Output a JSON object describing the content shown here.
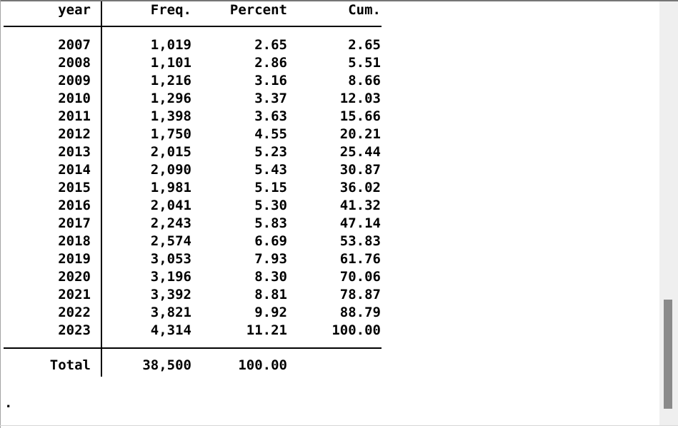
{
  "colors": {
    "text": "#000000",
    "background": "#ffffff",
    "border_top": "#757575",
    "border_left": "#a3a3a3",
    "border_bottom": "#d6d6d6",
    "scrollbar_track": "#efefef",
    "scrollbar_thumb": "#8a8a8a"
  },
  "prompt": ".",
  "table": {
    "header": {
      "year": "year",
      "freq": "Freq.",
      "percent": "Percent",
      "cum": "Cum."
    },
    "rows": [
      [
        "2007",
        "1,019",
        "2.65",
        "2.65"
      ],
      [
        "2008",
        "1,101",
        "2.86",
        "5.51"
      ],
      [
        "2009",
        "1,216",
        "3.16",
        "8.66"
      ],
      [
        "2010",
        "1,296",
        "3.37",
        "12.03"
      ],
      [
        "2011",
        "1,398",
        "3.63",
        "15.66"
      ],
      [
        "2012",
        "1,750",
        "4.55",
        "20.21"
      ],
      [
        "2013",
        "2,015",
        "5.23",
        "25.44"
      ],
      [
        "2014",
        "2,090",
        "5.43",
        "30.87"
      ],
      [
        "2015",
        "1,981",
        "5.15",
        "36.02"
      ],
      [
        "2016",
        "2,041",
        "5.30",
        "41.32"
      ],
      [
        "2017",
        "2,243",
        "5.83",
        "47.14"
      ],
      [
        "2018",
        "2,574",
        "6.69",
        "53.83"
      ],
      [
        "2019",
        "3,053",
        "7.93",
        "61.76"
      ],
      [
        "2020",
        "3,196",
        "8.30",
        "70.06"
      ],
      [
        "2021",
        "3,392",
        "8.81",
        "78.87"
      ],
      [
        "2022",
        "3,821",
        "9.92",
        "88.79"
      ],
      [
        "2023",
        "4,314",
        "11.21",
        "100.00"
      ]
    ],
    "total": {
      "label": "Total",
      "freq": "38,500",
      "percent": "100.00",
      "cum": ""
    }
  }
}
